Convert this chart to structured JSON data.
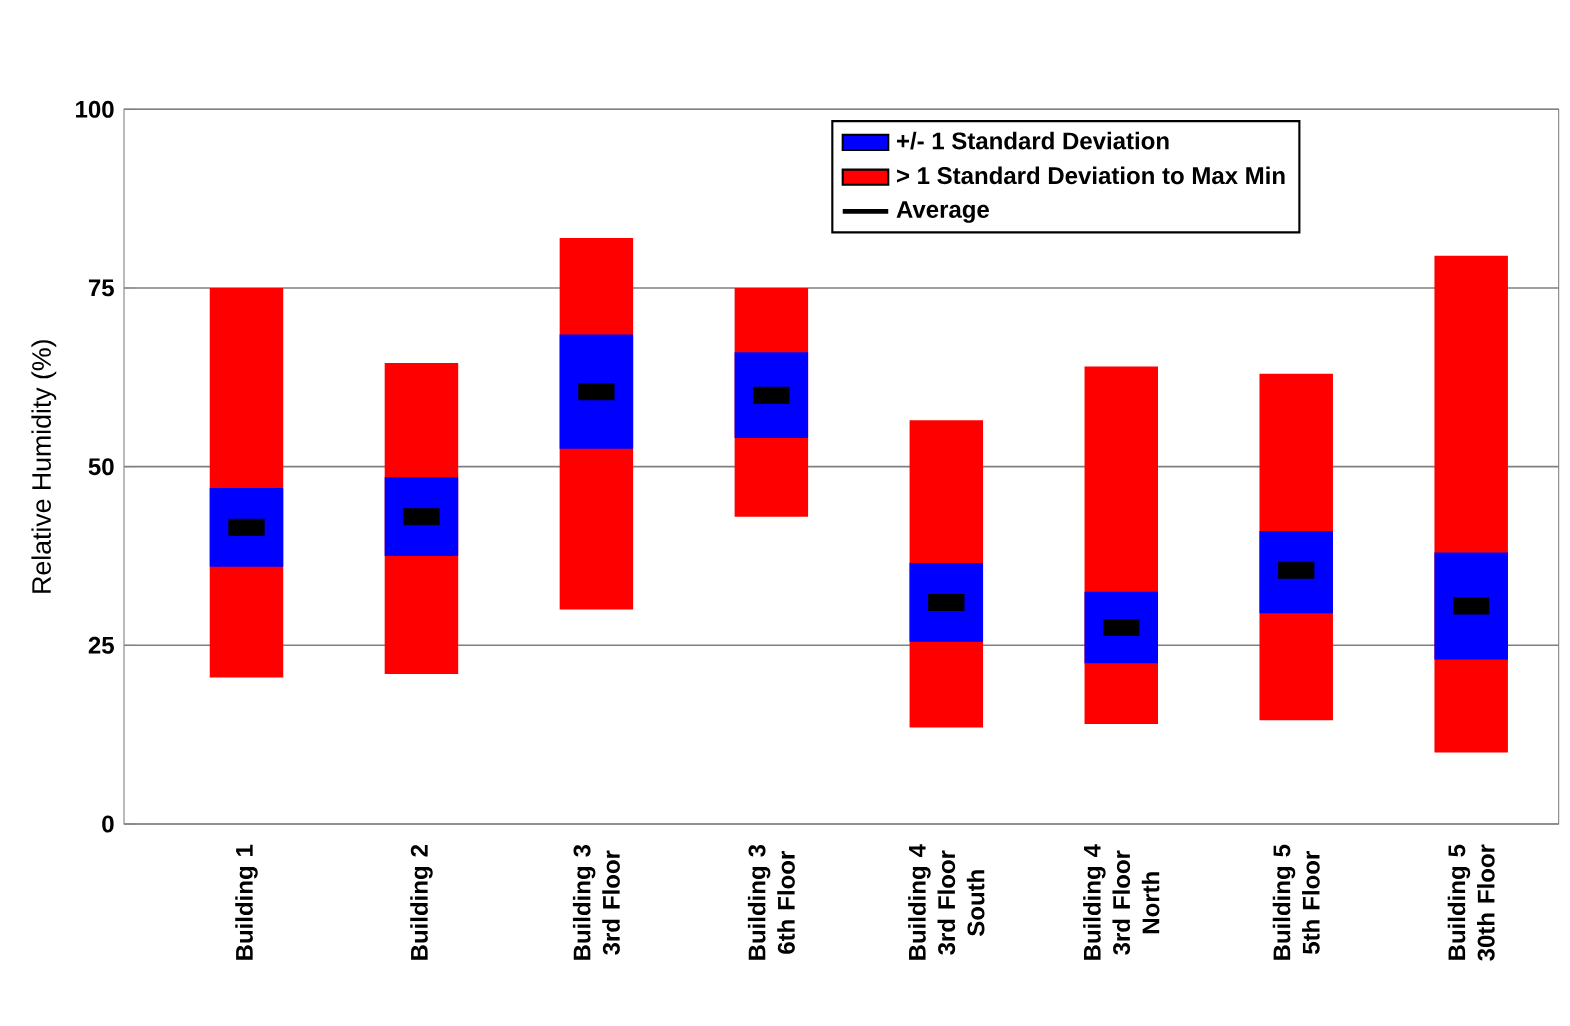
{
  "chart_data": {
    "type": "bar",
    "ylabel": "Relative Humidity (%)",
    "categories": [
      "Building 1",
      "Building 2",
      "Building 3 3rd Floor",
      "Building 3 6th Floor",
      "Building 4 3rd Floor South",
      "Building 4 3rd Floor North",
      "Building 5 5th Floor",
      "Building 5 30th Floor"
    ],
    "ylim": [
      0,
      100
    ],
    "yticks": [
      0,
      25,
      50,
      75,
      100
    ],
    "grid": "y",
    "legend": "top right",
    "series": [
      {
        "name": "+/- 1 Standard Deviation",
        "color": "#0000ff",
        "base": [
          36,
          37.5,
          52.5,
          54,
          25.5,
          22.5,
          29.5,
          23
        ],
        "values": [
          11,
          11,
          16,
          12,
          11,
          10,
          11.5,
          15
        ]
      },
      {
        "name": "> 1 Standard Deviation to Max Min",
        "color": "#ff0000",
        "base": [
          20.5,
          21,
          30,
          43,
          13.5,
          14,
          14.5,
          10
        ],
        "values": [
          54.5,
          43.5,
          52,
          32,
          43,
          50,
          48.5,
          69.5
        ]
      },
      {
        "name": "Average",
        "type": "scatter",
        "marker": "square",
        "color": "#000000",
        "values": [
          41.5,
          43,
          60.5,
          60,
          31,
          27.5,
          35.5,
          30.5
        ]
      }
    ]
  }
}
